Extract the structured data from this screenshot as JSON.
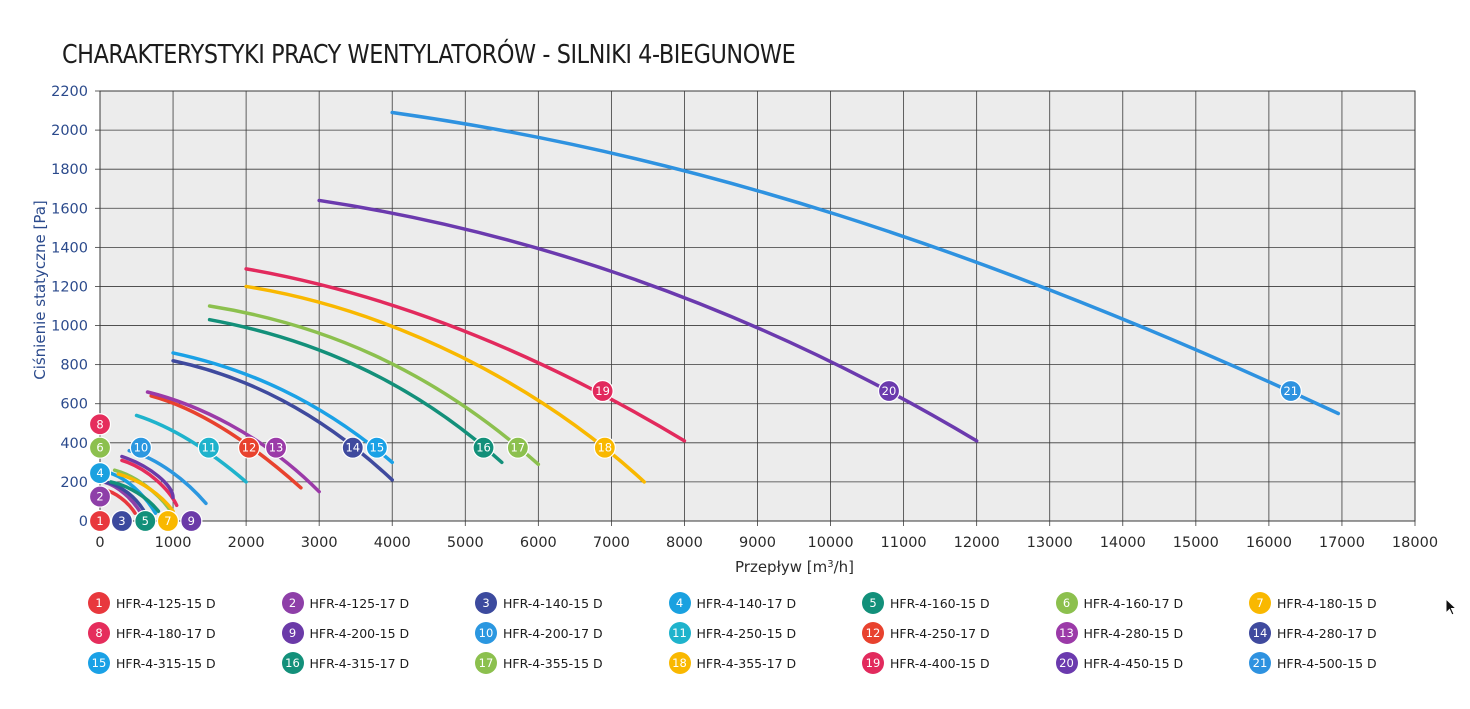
{
  "title": "CHARAKTERYSTYKI PRACY WENTYLATORÓW - SILNIKI 4-BIEGUNOWE",
  "colors": {
    "plot_bg": "#ececec",
    "grid": "#3a3a3a",
    "c1": "#e8383d",
    "c2": "#8e3fa8",
    "c3": "#3c4a9e",
    "c4": "#1aa1e0",
    "c5": "#12907a",
    "c6": "#8cc04e",
    "c7": "#f9b800",
    "c8": "#e52d5c",
    "c9": "#6b3aa8",
    "c10": "#2b97e0",
    "c11": "#1fb3cc",
    "c12": "#e8422e",
    "c13": "#9b3aa8",
    "c14": "#3f4a9e",
    "c15": "#1aa1e6",
    "c16": "#13907a",
    "c17": "#8cc04e",
    "c18": "#f9b800",
    "c19": "#e22a5d",
    "c20": "#6b3aae",
    "c21": "#2e92e0"
  },
  "chart_data": {
    "type": "line",
    "title": "CHARAKTERYSTYKI PRACY WENTYLATORÓW - SILNIKI 4-BIEGUNOWE",
    "xlabel_main": "Przepływ",
    "xlabel_unit": "[m",
    "xlabel_sup": "3",
    "xlabel_tail": "/h]",
    "ylabel": "Ciśnienie statyczne [Pa]",
    "xlim": [
      0,
      18000
    ],
    "ylim": [
      0,
      2200
    ],
    "x_ticks": [
      0,
      1000,
      2000,
      3000,
      4000,
      5000,
      6000,
      7000,
      8000,
      9000,
      10000,
      11000,
      12000,
      13000,
      14000,
      15000,
      16000,
      17000,
      18000
    ],
    "x_tick_labels": [
      "0",
      "1000",
      "2000",
      "3000",
      "4000",
      "5000",
      "6000",
      "7000",
      "8000",
      "9000",
      "10000",
      "11000",
      "12000",
      "13000",
      "14000",
      "15000",
      "16000",
      "17000",
      "18000"
    ],
    "y_ticks": [
      0,
      200,
      400,
      600,
      800,
      1000,
      1200,
      1400,
      1600,
      1800,
      2000,
      2200
    ],
    "y_tick_labels": [
      "0",
      "200",
      "400",
      "600",
      "800",
      "1000",
      "1200",
      "1400",
      "1600",
      "1800",
      "2000",
      "2200"
    ],
    "grid": true,
    "series": [
      {
        "id": 1,
        "name": "HFR-4-125-15 D",
        "color": "c1",
        "x": [
          50,
          200,
          380,
          480
        ],
        "y": [
          160,
          150,
          100,
          40
        ],
        "marker": [
          0,
          0
        ]
      },
      {
        "id": 2,
        "name": "HFR-4-125-17 D",
        "color": "c2",
        "x": [
          50,
          250,
          450,
          560
        ],
        "y": [
          200,
          180,
          110,
          40
        ],
        "marker": [
          0,
          125
        ]
      },
      {
        "id": 3,
        "name": "HFR-4-140-15 D",
        "color": "c3",
        "x": [
          80,
          300,
          500,
          620
        ],
        "y": [
          200,
          180,
          120,
          40
        ],
        "marker": [
          300,
          0
        ]
      },
      {
        "id": 4,
        "name": "HFR-4-140-17 D",
        "color": "c4",
        "x": [
          100,
          350,
          600,
          760
        ],
        "y": [
          250,
          225,
          140,
          40
        ],
        "marker": [
          0,
          245
        ]
      },
      {
        "id": 5,
        "name": "HFR-4-160-15 D",
        "color": "c5",
        "x": [
          150,
          400,
          650,
          800
        ],
        "y": [
          200,
          180,
          120,
          50
        ],
        "marker": [
          620,
          0
        ]
      },
      {
        "id": 6,
        "name": "HFR-4-160-17 D",
        "color": "c6",
        "x": [
          200,
          500,
          800,
          950
        ],
        "y": [
          260,
          230,
          140,
          60
        ],
        "marker": [
          0,
          375
        ]
      },
      {
        "id": 7,
        "name": "HFR-4-180-15 D",
        "color": "c7",
        "x": [
          250,
          550,
          850,
          1000
        ],
        "y": [
          240,
          210,
          130,
          50
        ],
        "marker": [
          930,
          0
        ]
      },
      {
        "id": 8,
        "name": "HFR-4-180-17 D",
        "color": "c8",
        "x": [
          300,
          650,
          950,
          1050
        ],
        "y": [
          310,
          270,
          160,
          80
        ],
        "marker": [
          0,
          495
        ]
      },
      {
        "id": 9,
        "name": "HFR-4-200-15 D",
        "color": "c9",
        "x": [
          300,
          700,
          1000,
          1000
        ],
        "y": [
          330,
          280,
          180,
          120
        ],
        "marker": [
          1250,
          0
        ]
      },
      {
        "id": 10,
        "name": "HFR-4-200-17 D",
        "color": "c10",
        "x": [
          400,
          800,
          1200,
          1450
        ],
        "y": [
          360,
          320,
          200,
          90
        ],
        "marker": [
          560,
          375
        ]
      },
      {
        "id": 11,
        "name": "HFR-4-250-15 D",
        "color": "c11",
        "x": [
          500,
          1000,
          1500,
          2000
        ],
        "y": [
          540,
          480,
          360,
          200
        ],
        "marker": [
          1490,
          375
        ]
      },
      {
        "id": 12,
        "name": "HFR-4-250-17 D",
        "color": "c12",
        "x": [
          700,
          1300,
          2000,
          2750
        ],
        "y": [
          640,
          580,
          420,
          170
        ],
        "marker": [
          2040,
          375
        ]
      },
      {
        "id": 13,
        "name": "HFR-4-280-15 D",
        "color": "c13",
        "x": [
          650,
          1300,
          2200,
          3000
        ],
        "y": [
          660,
          600,
          450,
          150
        ],
        "marker": [
          2410,
          375
        ]
      },
      {
        "id": 14,
        "name": "HFR-4-280-17 D",
        "color": "c14",
        "x": [
          1000,
          2000,
          3000,
          4000
        ],
        "y": [
          820,
          740,
          560,
          210
        ],
        "marker": [
          3460,
          375
        ]
      },
      {
        "id": 15,
        "name": "HFR-4-315-15 D",
        "color": "c15",
        "x": [
          1000,
          2000,
          3000,
          4000
        ],
        "y": [
          860,
          780,
          620,
          300
        ],
        "marker": [
          3790,
          375
        ]
      },
      {
        "id": 16,
        "name": "HFR-4-315-17 D",
        "color": "c16",
        "x": [
          1500,
          2800,
          4200,
          5500
        ],
        "y": [
          1030,
          940,
          740,
          300
        ],
        "marker": [
          5250,
          375
        ]
      },
      {
        "id": 17,
        "name": "HFR-4-355-15 D",
        "color": "c17",
        "x": [
          1500,
          3000,
          4500,
          6000
        ],
        "y": [
          1100,
          1010,
          790,
          290
        ],
        "marker": [
          5720,
          375
        ]
      },
      {
        "id": 18,
        "name": "HFR-4-355-17 D",
        "color": "c18",
        "x": [
          2000,
          4000,
          6000,
          7450
        ],
        "y": [
          1200,
          1080,
          700,
          200
        ],
        "marker": [
          6910,
          375
        ]
      },
      {
        "id": 19,
        "name": "HFR-4-400-15 D",
        "color": "c19",
        "x": [
          2000,
          4000,
          6000,
          8000
        ],
        "y": [
          1290,
          1160,
          860,
          410
        ],
        "marker": [
          6880,
          665
        ]
      },
      {
        "id": 20,
        "name": "HFR-4-450-15 D",
        "color": "c20",
        "x": [
          3000,
          6000,
          9000,
          12000
        ],
        "y": [
          1640,
          1470,
          1080,
          410
        ],
        "marker": [
          10800,
          665
        ]
      },
      {
        "id": 21,
        "name": "HFR-4-500-15 D",
        "color": "c21",
        "x": [
          4000,
          8000,
          12000,
          16950
        ],
        "y": [
          2090,
          1880,
          1410,
          550
        ],
        "marker": [
          16300,
          665
        ]
      }
    ]
  }
}
